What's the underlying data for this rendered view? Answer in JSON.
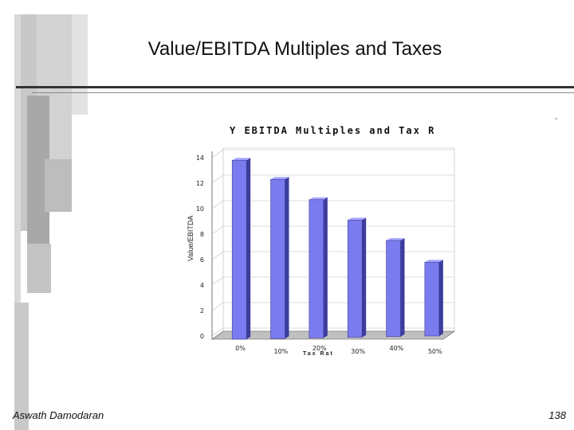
{
  "slide": {
    "title": "Value/EBITDA Multiples and Taxes",
    "author": "Aswath Damodaran",
    "page_number": "138",
    "corner_mark": "-"
  },
  "chart_data": {
    "type": "bar",
    "title": "Y EBITDA Multiples and Tax R",
    "xlabel": "Tax Rat",
    "ylabel": "Value/EBITDA",
    "categories": [
      "0%",
      "10%",
      "20%",
      "30%",
      "40%",
      "50%"
    ],
    "values": [
      13.8,
      12.3,
      10.7,
      9.1,
      7.5,
      5.8
    ],
    "ylim": [
      0,
      14
    ],
    "yticks": [
      0,
      2,
      4,
      6,
      8,
      10,
      12,
      14
    ],
    "grid": true,
    "colors": {
      "bar_face": "#7b7bf0",
      "bar_side": "#3d3d9e",
      "bar_top": "#a8a8ff"
    }
  }
}
